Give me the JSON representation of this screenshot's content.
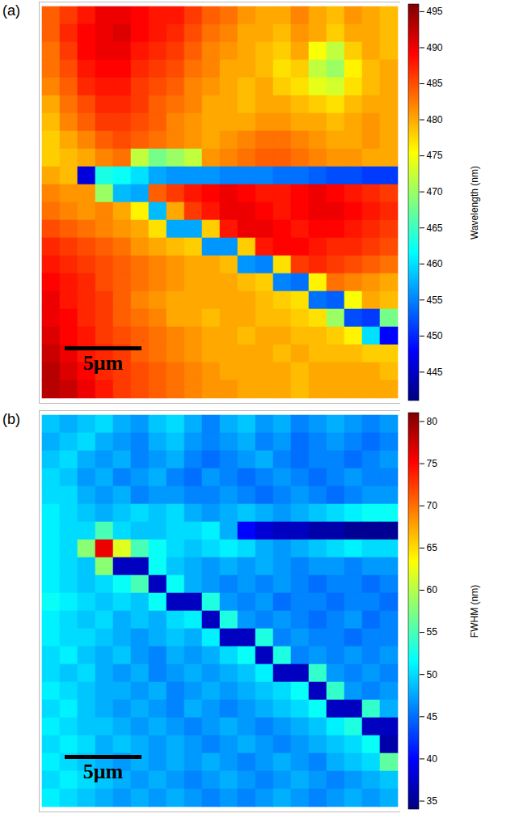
{
  "chart_data": [
    {
      "type": "heatmap",
      "title": "(a)",
      "annotations": [
        "5μm"
      ],
      "color": "jet",
      "tick_labels": false,
      "colorbar": {
        "label": "Wavelength (nm)",
        "range": [
          441,
          496
        ],
        "ticks": [
          445,
          450,
          455,
          460,
          465,
          470,
          475,
          480,
          485,
          490,
          495
        ]
      },
      "cells": [
        [
          484,
          486,
          488,
          490,
          490,
          489,
          488,
          488,
          486,
          484,
          483,
          481,
          480,
          480,
          482,
          480,
          479,
          481,
          480,
          479
        ],
        [
          484,
          487,
          489,
          490,
          491,
          489,
          488,
          487,
          485,
          483,
          482,
          480,
          480,
          479,
          481,
          480,
          478,
          480,
          480,
          479
        ],
        [
          483,
          486,
          489,
          490,
          490,
          488,
          487,
          486,
          484,
          482,
          481,
          480,
          479,
          478,
          480,
          475,
          472,
          478,
          480,
          479
        ],
        [
          483,
          485,
          488,
          489,
          489,
          487,
          486,
          485,
          483,
          482,
          480,
          480,
          479,
          477,
          478,
          472,
          470,
          476,
          479,
          480
        ],
        [
          482,
          484,
          487,
          488,
          488,
          486,
          485,
          484,
          482,
          481,
          480,
          479,
          480,
          478,
          477,
          474,
          473,
          477,
          479,
          480
        ],
        [
          480,
          483,
          485,
          487,
          487,
          486,
          484,
          483,
          482,
          480,
          480,
          479,
          480,
          480,
          479,
          478,
          477,
          479,
          480,
          480
        ],
        [
          479,
          482,
          484,
          486,
          486,
          485,
          484,
          482,
          481,
          480,
          480,
          480,
          481,
          481,
          480,
          480,
          479,
          480,
          481,
          480
        ],
        [
          478,
          480,
          482,
          484,
          485,
          484,
          483,
          482,
          481,
          480,
          481,
          482,
          483,
          483,
          482,
          481,
          480,
          480,
          481,
          480
        ],
        [
          478,
          479,
          480,
          482,
          483,
          472,
          468,
          470,
          472,
          481,
          482,
          483,
          484,
          484,
          483,
          482,
          481,
          481,
          480,
          480
        ],
        [
          480,
          479,
          446,
          463,
          462,
          460,
          457,
          456,
          456,
          456,
          455,
          455,
          455,
          454,
          454,
          453,
          452,
          452,
          451,
          451
        ],
        [
          482,
          481,
          481,
          470,
          458,
          457,
          484,
          486,
          488,
          489,
          490,
          489,
          488,
          488,
          489,
          490,
          489,
          488,
          487,
          486
        ],
        [
          483,
          482,
          481,
          482,
          480,
          476,
          458,
          480,
          486,
          488,
          490,
          490,
          489,
          488,
          489,
          490,
          490,
          489,
          488,
          487
        ],
        [
          485,
          484,
          483,
          482,
          481,
          480,
          477,
          457,
          457,
          478,
          488,
          490,
          490,
          489,
          488,
          489,
          489,
          488,
          487,
          486
        ],
        [
          487,
          486,
          485,
          484,
          483,
          481,
          480,
          479,
          478,
          456,
          456,
          478,
          488,
          489,
          489,
          488,
          487,
          487,
          486,
          485
        ],
        [
          488,
          487,
          486,
          485,
          484,
          483,
          482,
          481,
          480,
          480,
          479,
          456,
          455,
          477,
          486,
          487,
          486,
          485,
          484,
          483
        ],
        [
          489,
          488,
          487,
          485,
          484,
          483,
          482,
          481,
          480,
          480,
          480,
          479,
          478,
          455,
          454,
          476,
          483,
          482,
          481,
          480
        ],
        [
          490,
          488,
          487,
          486,
          484,
          482,
          481,
          480,
          480,
          480,
          480,
          480,
          479,
          478,
          477,
          454,
          453,
          475,
          480,
          479
        ],
        [
          490,
          489,
          487,
          486,
          484,
          483,
          482,
          480,
          480,
          479,
          480,
          480,
          479,
          479,
          478,
          477,
          470,
          452,
          451,
          468
        ],
        [
          491,
          489,
          488,
          486,
          485,
          484,
          483,
          482,
          481,
          480,
          480,
          479,
          480,
          480,
          479,
          479,
          478,
          476,
          460,
          448
        ],
        [
          492,
          490,
          488,
          487,
          486,
          484,
          483,
          482,
          481,
          480,
          480,
          480,
          480,
          479,
          480,
          479,
          479,
          479,
          478,
          478
        ],
        [
          493,
          491,
          489,
          487,
          486,
          485,
          484,
          483,
          482,
          481,
          480,
          480,
          480,
          480,
          479,
          480,
          480,
          480,
          480,
          479
        ],
        [
          493,
          492,
          490,
          488,
          486,
          485,
          484,
          483,
          482,
          481,
          481,
          480,
          480,
          480,
          479,
          480,
          480,
          480,
          480,
          480
        ]
      ]
    },
    {
      "type": "heatmap",
      "title": "(b)",
      "annotations": [
        "5μm"
      ],
      "color": "jet",
      "tick_labels": false,
      "colorbar": {
        "label": "FWHM (nm)",
        "range": [
          34,
          81
        ],
        "ticks": [
          35,
          40,
          45,
          50,
          55,
          60,
          65,
          70,
          75,
          80
        ]
      },
      "cells": [
        [
          49,
          48,
          49,
          50,
          48,
          47,
          49,
          50,
          48,
          46,
          48,
          49,
          47,
          48,
          46,
          47,
          48,
          47,
          46,
          47
        ],
        [
          48,
          49,
          50,
          48,
          47,
          46,
          48,
          49,
          47,
          46,
          47,
          48,
          46,
          47,
          45,
          46,
          47,
          46,
          45,
          46
        ],
        [
          49,
          50,
          48,
          47,
          48,
          46,
          47,
          48,
          46,
          45,
          46,
          47,
          48,
          46,
          45,
          46,
          46,
          45,
          46,
          47
        ],
        [
          50,
          49,
          47,
          48,
          46,
          47,
          48,
          46,
          45,
          47,
          46,
          45,
          46,
          47,
          46,
          45,
          46,
          47,
          46,
          46
        ],
        [
          50,
          50,
          48,
          47,
          48,
          46,
          47,
          47,
          46,
          46,
          47,
          46,
          45,
          46,
          47,
          46,
          45,
          46,
          47,
          47
        ],
        [
          51,
          50,
          49,
          48,
          49,
          50,
          49,
          50,
          48,
          47,
          48,
          49,
          48,
          47,
          48,
          49,
          50,
          51,
          52,
          52
        ],
        [
          51,
          50,
          50,
          55,
          50,
          49,
          49,
          50,
          50,
          51,
          48,
          40,
          38,
          37,
          37,
          36,
          36,
          35,
          35,
          35
        ],
        [
          51,
          50,
          58,
          76,
          62,
          55,
          52,
          50,
          49,
          50,
          51,
          50,
          48,
          47,
          48,
          49,
          50,
          51,
          50,
          50
        ],
        [
          51,
          50,
          49,
          58,
          37,
          37,
          52,
          49,
          48,
          47,
          48,
          47,
          48,
          47,
          46,
          47,
          47,
          46,
          47,
          47
        ],
        [
          51,
          50,
          49,
          50,
          52,
          55,
          37,
          52,
          48,
          47,
          46,
          47,
          46,
          47,
          46,
          45,
          46,
          46,
          45,
          46
        ],
        [
          52,
          51,
          50,
          49,
          50,
          49,
          52,
          37,
          37,
          53,
          47,
          46,
          47,
          45,
          46,
          46,
          45,
          46,
          46,
          45
        ],
        [
          51,
          50,
          49,
          50,
          48,
          49,
          48,
          50,
          51,
          37,
          53,
          47,
          46,
          47,
          46,
          45,
          46,
          47,
          45,
          46
        ],
        [
          51,
          50,
          50,
          49,
          48,
          47,
          48,
          49,
          48,
          51,
          37,
          37,
          53,
          46,
          47,
          46,
          46,
          45,
          46,
          46
        ],
        [
          50,
          51,
          49,
          48,
          49,
          47,
          46,
          48,
          47,
          48,
          50,
          52,
          37,
          53,
          46,
          47,
          46,
          47,
          46,
          47
        ],
        [
          50,
          49,
          50,
          48,
          47,
          48,
          46,
          47,
          48,
          47,
          48,
          49,
          51,
          37,
          37,
          54,
          47,
          46,
          47,
          46
        ],
        [
          51,
          50,
          49,
          48,
          48,
          47,
          48,
          46,
          47,
          48,
          47,
          48,
          49,
          50,
          52,
          37,
          54,
          47,
          46,
          47
        ],
        [
          50,
          51,
          49,
          48,
          47,
          48,
          47,
          46,
          48,
          47,
          46,
          47,
          48,
          49,
          50,
          52,
          37,
          37,
          54,
          48
        ],
        [
          51,
          50,
          49,
          49,
          48,
          47,
          48,
          47,
          46,
          47,
          48,
          47,
          46,
          47,
          48,
          49,
          51,
          53,
          37,
          37
        ],
        [
          50,
          51,
          50,
          48,
          49,
          48,
          47,
          48,
          47,
          46,
          47,
          48,
          47,
          46,
          47,
          48,
          49,
          50,
          52,
          36
        ],
        [
          51,
          50,
          49,
          48,
          47,
          48,
          47,
          48,
          47,
          48,
          47,
          46,
          47,
          48,
          47,
          46,
          48,
          49,
          50,
          56
        ],
        [
          50,
          51,
          50,
          49,
          48,
          47,
          48,
          47,
          46,
          47,
          48,
          47,
          46,
          47,
          48,
          47,
          46,
          47,
          48,
          49
        ],
        [
          51,
          50,
          49,
          48,
          47,
          48,
          47,
          48,
          47,
          46,
          47,
          46,
          47,
          48,
          47,
          46,
          47,
          48,
          47,
          48
        ]
      ]
    }
  ]
}
